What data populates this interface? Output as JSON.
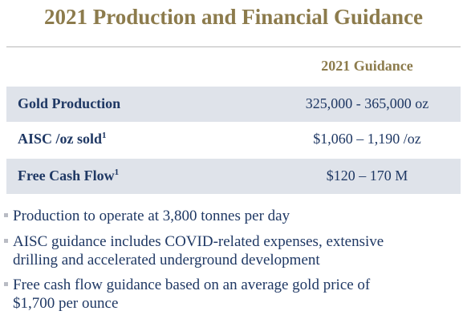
{
  "title": "2021 Production and Financial Guidance",
  "table": {
    "header": "2021 Guidance",
    "rows": [
      {
        "label": "Gold Production",
        "value": "325,000 - 365,000 oz"
      },
      {
        "label": "AISC /oz sold",
        "note": "1",
        "value": "$1,060 – 1,190 /oz"
      },
      {
        "label": "Free Cash Flow",
        "note": "1",
        "value": "$120 – 170 M"
      }
    ]
  },
  "bullets": [
    [
      "Production to operate at 3,800 tonnes per day"
    ],
    [
      "AISC guidance includes COVID-related expenses, extensive",
      "drilling and accelerated underground development"
    ],
    [
      "Free cash flow guidance based on an average gold price of",
      "$1,700 per ounce"
    ]
  ]
}
